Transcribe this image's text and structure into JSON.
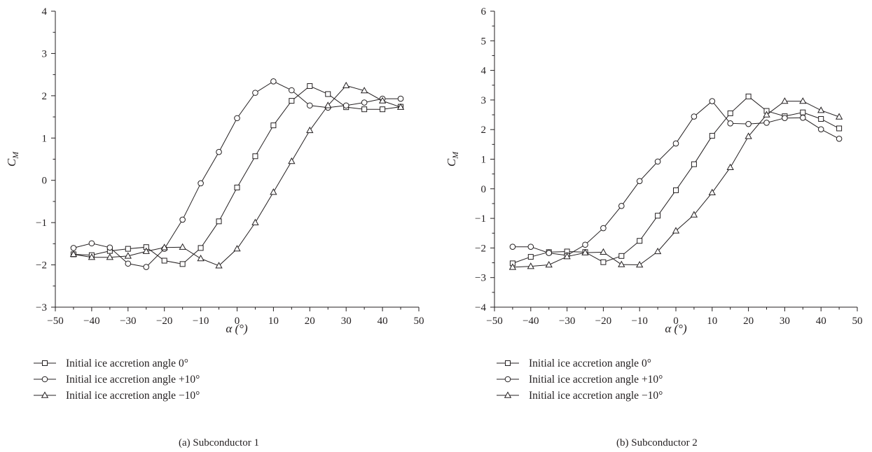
{
  "chart_data": [
    {
      "type": "line",
      "caption": "(a)  Subconductor 1",
      "xlabel": "α (°)",
      "ylabel": "C_M",
      "xlim": [
        -50,
        50
      ],
      "ylim": [
        -3,
        4
      ],
      "xticks": [
        -50,
        -40,
        -30,
        -20,
        -10,
        0,
        10,
        20,
        30,
        40,
        50
      ],
      "yticks": [
        -3,
        -2,
        -1,
        0,
        1,
        2,
        3,
        4
      ],
      "grid": false,
      "legend_position": "below",
      "x": [
        -45,
        -40,
        -35,
        -30,
        -25,
        -20,
        -15,
        -10,
        -5,
        0,
        5,
        10,
        15,
        20,
        25,
        30,
        35,
        40,
        45
      ],
      "series": [
        {
          "name": "Initial ice accretion angle 0°",
          "marker": "square",
          "values": [
            -1.75,
            -1.77,
            -1.67,
            -1.62,
            -1.58,
            -1.9,
            -1.98,
            -1.6,
            -0.97,
            -0.17,
            0.57,
            1.3,
            1.88,
            2.23,
            2.04,
            1.73,
            1.68,
            1.68,
            1.74
          ]
        },
        {
          "name": "Initial ice accretion angle +10°",
          "marker": "circle",
          "values": [
            -1.6,
            -1.49,
            -1.59,
            -1.97,
            -2.05,
            -1.62,
            -0.93,
            -0.07,
            0.67,
            1.47,
            2.07,
            2.34,
            2.13,
            1.77,
            1.72,
            1.77,
            1.84,
            1.93,
            1.93
          ]
        },
        {
          "name": "Initial ice accretion angle −10°",
          "marker": "triangle",
          "values": [
            -1.75,
            -1.82,
            -1.82,
            -1.79,
            -1.68,
            -1.59,
            -1.58,
            -1.85,
            -2.02,
            -1.62,
            -1.0,
            -0.28,
            0.45,
            1.18,
            1.77,
            2.24,
            2.12,
            1.88,
            1.73
          ]
        }
      ]
    },
    {
      "type": "line",
      "caption": "(b)  Subconductor 2",
      "xlabel": "α (°)",
      "ylabel": "C_M",
      "xlim": [
        -50,
        50
      ],
      "ylim": [
        -4,
        6
      ],
      "xticks": [
        -50,
        -40,
        -30,
        -20,
        -10,
        0,
        10,
        20,
        30,
        40,
        50
      ],
      "yticks": [
        -4,
        -3,
        -2,
        -1,
        0,
        1,
        2,
        3,
        4,
        5,
        6
      ],
      "grid": false,
      "legend_position": "below",
      "x": [
        -45,
        -40,
        -35,
        -30,
        -25,
        -20,
        -15,
        -10,
        -5,
        0,
        5,
        10,
        15,
        20,
        25,
        30,
        35,
        40,
        45
      ],
      "series": [
        {
          "name": "Initial ice accretion angle 0°",
          "marker": "square",
          "values": [
            -2.52,
            -2.3,
            -2.14,
            -2.12,
            -2.14,
            -2.48,
            -2.27,
            -1.76,
            -0.91,
            -0.05,
            0.83,
            1.79,
            2.55,
            3.12,
            2.63,
            2.45,
            2.58,
            2.36,
            2.04
          ]
        },
        {
          "name": "Initial ice accretion angle +10°",
          "marker": "circle",
          "values": [
            -1.96,
            -1.96,
            -2.17,
            -2.25,
            -1.89,
            -1.33,
            -0.58,
            0.26,
            0.92,
            1.53,
            2.44,
            2.96,
            2.21,
            2.19,
            2.23,
            2.39,
            2.4,
            2.01,
            1.69
          ]
        },
        {
          "name": "Initial ice accretion angle −10°",
          "marker": "triangle",
          "values": [
            -2.65,
            -2.62,
            -2.57,
            -2.29,
            -2.16,
            -2.14,
            -2.56,
            -2.57,
            -2.12,
            -1.42,
            -0.88,
            -0.13,
            0.72,
            1.77,
            2.5,
            2.96,
            2.96,
            2.65,
            2.43
          ]
        }
      ]
    }
  ]
}
